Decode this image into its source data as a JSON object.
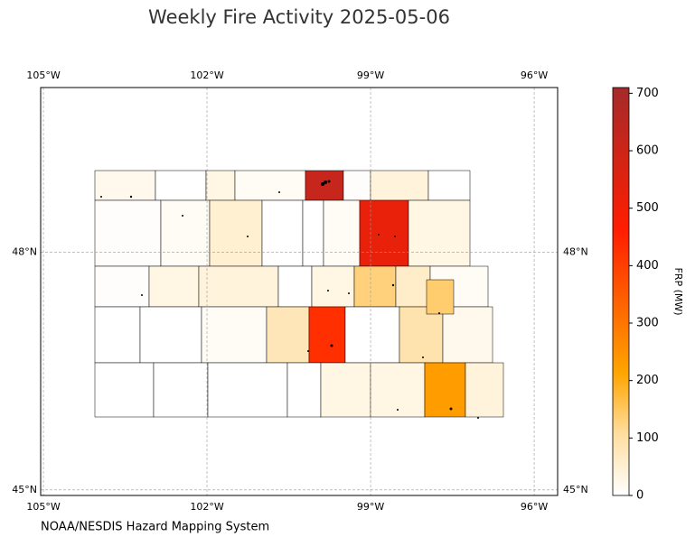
{
  "map": {
    "title": "Weekly Fire Activity 2025-05-06",
    "source": "NOAA/NESDIS Hazard Mapping System",
    "lonlim": [
      -105.05,
      -95.57
    ],
    "latlim": [
      44.93,
      50.08
    ],
    "lon_ticks": [
      {
        "value": -105,
        "label": "105°W"
      },
      {
        "value": -102,
        "label": "102°W"
      },
      {
        "value": -99,
        "label": "99°W"
      },
      {
        "value": -96,
        "label": "96°W"
      }
    ],
    "lat_ticks": [
      {
        "value": 48,
        "label": "48°N"
      },
      {
        "value": 45,
        "label": "45°N"
      }
    ],
    "grid": true,
    "colorbar": {
      "label": "FRP (MW)",
      "lim": [
        0,
        710
      ],
      "ticks": [
        0,
        100,
        200,
        300,
        400,
        500,
        600,
        700
      ]
    },
    "region_frp": [
      20,
      0,
      30,
      10,
      620,
      5,
      40,
      0,
      5,
      10,
      50,
      0,
      0,
      10,
      520,
      30,
      5,
      30,
      40,
      0,
      30,
      130,
      60,
      10,
      0,
      0,
      10,
      80,
      430,
      0,
      90,
      20,
      0,
      0,
      0,
      0,
      30,
      30,
      230,
      40,
      140
    ]
  }
}
